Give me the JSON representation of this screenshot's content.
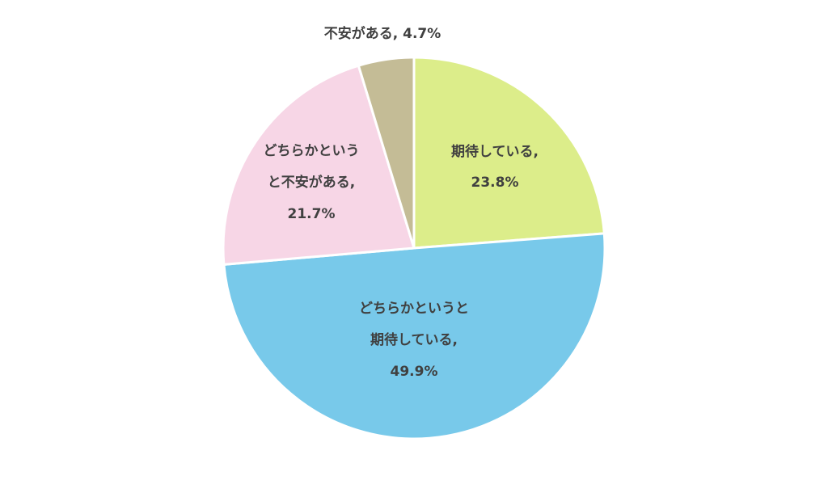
{
  "chart_data": {
    "type": "pie",
    "labels": [
      [
        "期待している,",
        "23.8%"
      ],
      [
        "どちらかというと",
        "期待している,",
        "49.9%"
      ],
      [
        "どちらかという",
        "と不安がある,",
        "21.7%"
      ],
      [
        "不安がある, 4.7%"
      ]
    ],
    "values": [
      23.8,
      49.9,
      21.7,
      4.7
    ],
    "colors": [
      "#dced8a",
      "#78c9ea",
      "#f7d6e6",
      "#c4bc96"
    ]
  }
}
